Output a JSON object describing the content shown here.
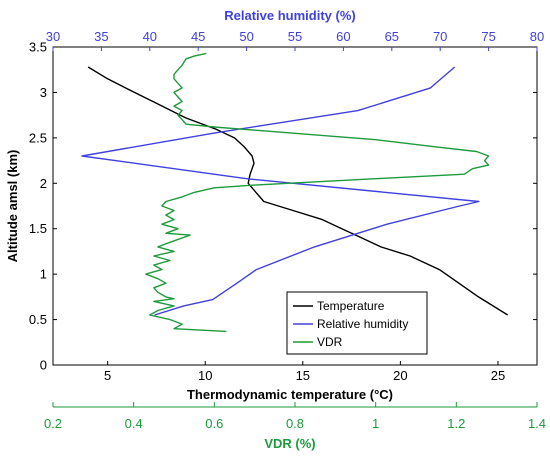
{
  "chart_data": {
    "type": "line",
    "axes": {
      "y": {
        "label": "Altitude amsl (km)",
        "range": [
          0,
          3.5
        ],
        "ticks": [
          0,
          0.5,
          1,
          1.5,
          2,
          2.5,
          3,
          3.5
        ],
        "tick_labels": [
          "0",
          "0.5",
          "1",
          "1.5",
          "2",
          "2.5",
          "3",
          "3.5"
        ],
        "color": "#000000"
      },
      "x_bottom": {
        "label": "Thermodynamic temperature (°C)",
        "range": [
          2.2,
          27.0
        ],
        "ticks": [
          5,
          10,
          15,
          20,
          25
        ],
        "tick_labels": [
          "5",
          "10",
          "15",
          "20",
          "25"
        ],
        "color": "#000000"
      },
      "x_top": {
        "label": "Relative humidity (%)",
        "range": [
          30,
          80
        ],
        "ticks": [
          30,
          35,
          40,
          45,
          50,
          55,
          60,
          65,
          70,
          75,
          80
        ],
        "tick_labels": [
          "30",
          "35",
          "40",
          "45",
          "50",
          "55",
          "60",
          "65",
          "70",
          "75",
          "80"
        ],
        "color": "#4040e0"
      },
      "x_vdr": {
        "label": "VDR (%)",
        "range": [
          0.2,
          1.4
        ],
        "ticks": [
          0.2,
          0.4,
          0.6,
          0.8,
          1.0,
          1.2,
          1.4
        ],
        "tick_labels": [
          "0.2",
          "0.4",
          "0.6",
          "0.8",
          "1",
          "1.2",
          "1.4"
        ],
        "color": "#1e9a3c"
      }
    },
    "series": [
      {
        "name": "Temperature",
        "axis": "x_bottom",
        "color": "#000000",
        "points": [
          [
            4.0,
            3.28
          ],
          [
            5.0,
            3.15
          ],
          [
            6.0,
            3.04
          ],
          [
            7.5,
            2.88
          ],
          [
            9.0,
            2.72
          ],
          [
            10.5,
            2.6
          ],
          [
            11.5,
            2.5
          ],
          [
            12.0,
            2.4
          ],
          [
            12.4,
            2.3
          ],
          [
            12.5,
            2.22
          ],
          [
            12.3,
            2.1
          ],
          [
            12.2,
            2.0
          ],
          [
            12.6,
            1.9
          ],
          [
            13.0,
            1.8
          ],
          [
            14.5,
            1.7
          ],
          [
            16.0,
            1.6
          ],
          [
            17.0,
            1.5
          ],
          [
            18.0,
            1.4
          ],
          [
            19.0,
            1.3
          ],
          [
            20.5,
            1.2
          ],
          [
            22.0,
            1.05
          ],
          [
            23.0,
            0.9
          ],
          [
            24.0,
            0.75
          ],
          [
            25.5,
            0.55
          ]
        ]
      },
      {
        "name": "Relative humidity",
        "axis": "x_top",
        "color": "#4040e0",
        "points": [
          [
            71.5,
            3.28
          ],
          [
            69.0,
            3.05
          ],
          [
            61.5,
            2.8
          ],
          [
            46.5,
            2.55
          ],
          [
            33.0,
            2.3
          ],
          [
            50.0,
            2.05
          ],
          [
            74.0,
            1.8
          ],
          [
            72.0,
            1.75
          ],
          [
            64.5,
            1.55
          ],
          [
            57.0,
            1.3
          ],
          [
            51.0,
            1.05
          ],
          [
            49.0,
            0.9
          ],
          [
            46.5,
            0.72
          ],
          [
            43.5,
            0.65
          ],
          [
            40.5,
            0.55
          ]
        ]
      },
      {
        "name": "VDR",
        "axis": "x_vdr",
        "color": "#1e9a3c",
        "points": [
          [
            0.58,
            3.43
          ],
          [
            0.55,
            3.4
          ],
          [
            0.53,
            3.37
          ],
          [
            0.52,
            3.3
          ],
          [
            0.51,
            3.25
          ],
          [
            0.5,
            3.2
          ],
          [
            0.5,
            3.15
          ],
          [
            0.51,
            3.1
          ],
          [
            0.52,
            3.05
          ],
          [
            0.5,
            3.0
          ],
          [
            0.51,
            2.95
          ],
          [
            0.52,
            2.9
          ],
          [
            0.5,
            2.85
          ],
          [
            0.52,
            2.8
          ],
          [
            0.51,
            2.75
          ],
          [
            0.52,
            2.7
          ],
          [
            0.53,
            2.65
          ],
          [
            0.6,
            2.62
          ],
          [
            0.8,
            2.55
          ],
          [
            1.0,
            2.48
          ],
          [
            1.15,
            2.4
          ],
          [
            1.25,
            2.35
          ],
          [
            1.28,
            2.3
          ],
          [
            1.27,
            2.25
          ],
          [
            1.28,
            2.2
          ],
          [
            1.24,
            2.16
          ],
          [
            1.22,
            2.1
          ],
          [
            1.0,
            2.05
          ],
          [
            0.7,
            1.98
          ],
          [
            0.6,
            1.95
          ],
          [
            0.55,
            1.9
          ],
          [
            0.52,
            1.85
          ],
          [
            0.48,
            1.8
          ],
          [
            0.47,
            1.75
          ],
          [
            0.5,
            1.7
          ],
          [
            0.48,
            1.65
          ],
          [
            0.5,
            1.6
          ],
          [
            0.47,
            1.55
          ],
          [
            0.51,
            1.5
          ],
          [
            0.48,
            1.45
          ],
          [
            0.54,
            1.43
          ],
          [
            0.49,
            1.35
          ],
          [
            0.46,
            1.3
          ],
          [
            0.5,
            1.25
          ],
          [
            0.45,
            1.2
          ],
          [
            0.49,
            1.15
          ],
          [
            0.45,
            1.1
          ],
          [
            0.47,
            1.05
          ],
          [
            0.43,
            1.0
          ],
          [
            0.46,
            0.95
          ],
          [
            0.48,
            0.9
          ],
          [
            0.45,
            0.85
          ],
          [
            0.46,
            0.8
          ],
          [
            0.48,
            0.75
          ],
          [
            0.5,
            0.73
          ],
          [
            0.45,
            0.7
          ],
          [
            0.5,
            0.65
          ],
          [
            0.46,
            0.6
          ],
          [
            0.44,
            0.55
          ],
          [
            0.49,
            0.5
          ],
          [
            0.52,
            0.45
          ],
          [
            0.5,
            0.4
          ],
          [
            0.63,
            0.37
          ]
        ]
      }
    ],
    "legend": {
      "placement": "bottom-right",
      "entries": [
        {
          "label": "Temperature",
          "color": "#000000"
        },
        {
          "label": "Relative humidity",
          "color": "#4040e0"
        },
        {
          "label": "VDR",
          "color": "#1e9a3c"
        }
      ]
    },
    "grid": false
  }
}
